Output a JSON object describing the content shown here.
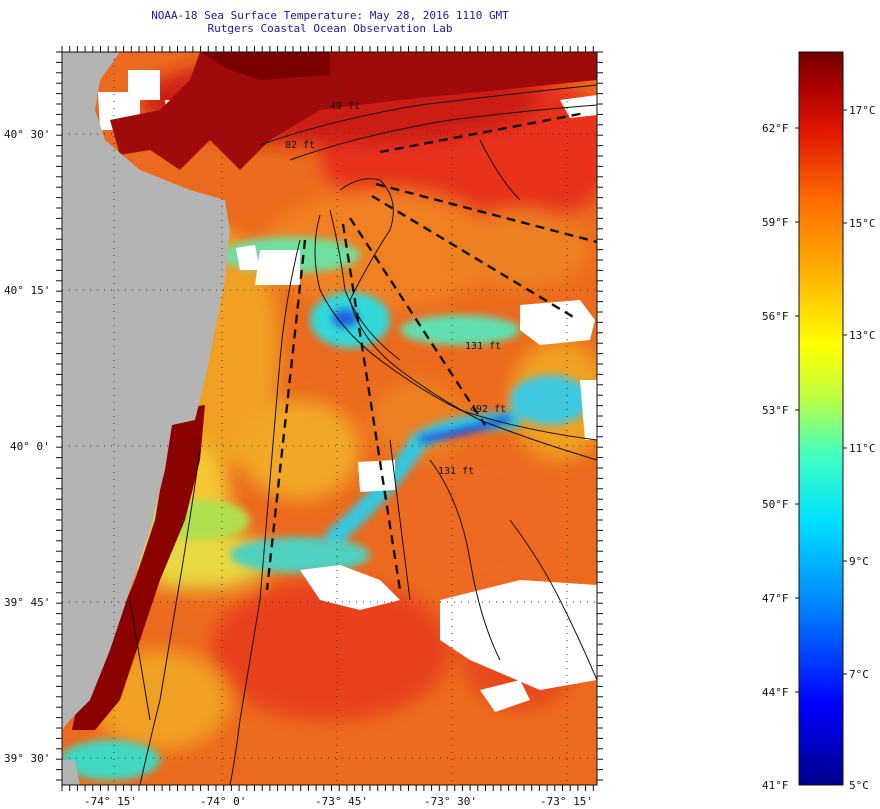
{
  "title": {
    "line1": "NOAA-18 Sea Surface Temperature:  May 28, 2016 1110 GMT",
    "line2": "Rutgers Coastal Ocean Observation Lab"
  },
  "map": {
    "lat_labels": [
      "40° 30'",
      "40° 15'",
      "40° 0'",
      "39° 45'",
      "39° 30'"
    ],
    "lon_labels": [
      "-74° 15'",
      "-74° 0'",
      "-73° 45'",
      "-73° 30'",
      "-73° 15'"
    ],
    "contour_labels": [
      "49 ft",
      "82 ft",
      "131 ft",
      "492 ft",
      "131 ft"
    ],
    "colors": {
      "land": "#b4b4b4",
      "cloud": "#ffffff",
      "warm": "#e8501a",
      "hot": "#8b0000",
      "cool": "#2ad7e0",
      "cold": "#1a3ad8"
    }
  },
  "colorbar": {
    "fahrenheit_labels": [
      "62°F",
      "59°F",
      "56°F",
      "53°F",
      "50°F",
      "47°F",
      "44°F",
      "41°F"
    ],
    "celsius_labels": [
      "17°C",
      "15°C",
      "13°C",
      "11°C",
      "9°C",
      "7°C",
      "5°C"
    ]
  }
}
